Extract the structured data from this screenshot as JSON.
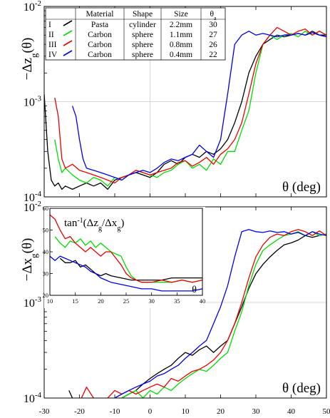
{
  "chart_data": [
    {
      "type": "line",
      "panel": "top",
      "ylabel": "−Δzg(θ)",
      "xlabel": "θ (deg)",
      "xlim": [
        -30,
        50
      ],
      "ylim": [
        0.0001,
        0.01
      ],
      "yscale": "log",
      "ytick_labels": [
        {
          "value": 0.01,
          "base": "10",
          "exp": "-2"
        },
        {
          "value": 0.001,
          "base": "10",
          "exp": "-3"
        },
        {
          "value": 0.0001,
          "base": "10",
          "exp": "-4"
        }
      ],
      "grid": true,
      "legend_table": {
        "headers": [
          "",
          "Material",
          "Shape",
          "Size",
          "θa"
        ],
        "rows": [
          {
            "label": "I",
            "material": "Pasta",
            "shape": "cylinder",
            "size": "2.2mm",
            "theta": "30"
          },
          {
            "label": "II",
            "material": "Carbon",
            "shape": "sphere",
            "size": "1.1mm",
            "theta": "27"
          },
          {
            "label": "III",
            "material": "Carbon",
            "shape": "sphere",
            "size": "0.8mm",
            "theta": "26"
          },
          {
            "label": "IV",
            "material": "Carbon",
            "shape": "sphere",
            "size": "0.4mm",
            "theta": "22"
          }
        ]
      },
      "series": [
        {
          "name": "I",
          "color": "#000000",
          "x": [
            -30,
            -29,
            -28,
            -27,
            -26,
            -25,
            -24,
            -22,
            -20,
            -18,
            -16,
            -14,
            -12,
            -10,
            -8,
            -6,
            -4,
            -2,
            0,
            2,
            4,
            6,
            8,
            10,
            12,
            14,
            16,
            18,
            20,
            22,
            24,
            26,
            28,
            30,
            32,
            34,
            36,
            38,
            40,
            42,
            44,
            46,
            48,
            50
          ],
          "y": [
            0.0012,
            0.0003,
            0.00015,
            0.00013,
            0.00014,
            0.00012,
            0.00013,
            0.00012,
            0.00013,
            0.00014,
            0.00013,
            0.00014,
            0.00012,
            0.00015,
            0.00016,
            0.00017,
            0.00018,
            0.00017,
            0.00016,
            0.00018,
            0.00022,
            0.00024,
            0.00022,
            0.00026,
            0.00028,
            0.00026,
            0.0003,
            0.00028,
            0.00032,
            0.0004,
            0.0006,
            0.001,
            0.002,
            0.003,
            0.004,
            0.0045,
            0.005,
            0.0048,
            0.005,
            0.0052,
            0.005,
            0.0055,
            0.005,
            0.005
          ]
        },
        {
          "name": "II",
          "color": "#00dd00",
          "x": [
            -27,
            -26,
            -25,
            -24,
            -22,
            -20,
            -18,
            -16,
            -14,
            -12,
            -10,
            -8,
            -6,
            -4,
            -2,
            0,
            2,
            4,
            6,
            8,
            10,
            12,
            14,
            16,
            18,
            20,
            22,
            24,
            26,
            28,
            30,
            32,
            34,
            36,
            38,
            40,
            42,
            44,
            46,
            48,
            50
          ],
          "y": [
            0.0004,
            0.00025,
            0.00018,
            0.0002,
            0.00017,
            0.00015,
            0.00014,
            0.00016,
            0.00015,
            0.00013,
            0.00016,
            0.00015,
            0.00017,
            0.00019,
            0.00018,
            0.00017,
            0.00016,
            0.00018,
            0.00019,
            0.00022,
            0.00024,
            0.0002,
            0.00022,
            0.00019,
            0.00025,
            0.00022,
            0.0003,
            0.0003,
            0.0005,
            0.0008,
            0.002,
            0.004,
            0.005,
            0.0045,
            0.005,
            0.0052,
            0.0048,
            0.0055,
            0.005,
            0.0055,
            0.005
          ]
        },
        {
          "name": "III",
          "color": "#ee0000",
          "x": [
            -27,
            -26,
            -25,
            -24,
            -22,
            -20,
            -18,
            -16,
            -14,
            -12,
            -10,
            -8,
            -6,
            -4,
            -2,
            0,
            2,
            4,
            6,
            8,
            10,
            12,
            14,
            16,
            18,
            20,
            22,
            24,
            26,
            28,
            30,
            32,
            34,
            36,
            38,
            40,
            42,
            44,
            46,
            48,
            50
          ],
          "y": [
            0.0011,
            0.0007,
            0.00025,
            0.0002,
            0.00022,
            0.00019,
            0.00018,
            0.00017,
            0.00016,
            0.00015,
            0.00014,
            0.00016,
            0.00017,
            0.00019,
            0.00018,
            0.00017,
            0.00018,
            0.00019,
            0.0002,
            0.00023,
            0.00024,
            0.00021,
            0.00023,
            0.00026,
            0.00022,
            0.00028,
            0.00032,
            0.0004,
            0.0006,
            0.0012,
            0.0025,
            0.004,
            0.005,
            0.006,
            0.0055,
            0.005,
            0.0055,
            0.0058,
            0.005,
            0.0055,
            0.005
          ]
        },
        {
          "name": "IV",
          "color": "#0000ee",
          "x": [
            -22,
            -21,
            -20,
            -19,
            -18,
            -16,
            -14,
            -12,
            -10,
            -8,
            -6,
            -4,
            -2,
            0,
            2,
            4,
            6,
            8,
            10,
            12,
            14,
            16,
            18,
            20,
            22,
            24,
            26,
            28,
            30,
            32,
            34,
            36,
            38,
            40,
            42,
            44,
            46,
            48,
            50
          ],
          "y": [
            0.0009,
            0.0007,
            0.0004,
            0.00025,
            0.0002,
            0.00019,
            0.00018,
            0.00017,
            0.00016,
            0.00015,
            0.00017,
            0.00018,
            0.00019,
            0.00018,
            0.0002,
            0.00023,
            0.00025,
            0.00024,
            0.00026,
            0.00028,
            0.00035,
            0.0003,
            0.00026,
            0.0004,
            0.0012,
            0.004,
            0.005,
            0.0055,
            0.005,
            0.0052,
            0.005,
            0.0048,
            0.005,
            0.005,
            0.0052,
            0.005,
            0.0053,
            0.005,
            0.0048
          ]
        }
      ]
    },
    {
      "type": "line",
      "panel": "bottom",
      "ylabel": "−Δxg(θ)",
      "xlabel": "θ (deg)",
      "xlim": [
        -30,
        50
      ],
      "ylim": [
        0.0001,
        0.01
      ],
      "yscale": "log",
      "ytick_labels": [
        {
          "value": 0.01,
          "base": "10",
          "exp": "-2"
        },
        {
          "value": 0.001,
          "base": "10",
          "exp": "-3"
        },
        {
          "value": 0.0001,
          "base": "10",
          "exp": "-4"
        }
      ],
      "xtick_labels": [
        "-30",
        "-20",
        "-10",
        "0",
        "10",
        "20",
        "30",
        "40",
        "50"
      ],
      "xticks": [
        -30,
        -20,
        -10,
        0,
        10,
        20,
        30,
        40,
        50
      ],
      "grid": true,
      "series": [
        {
          "name": "I",
          "color": "#000000",
          "x": [
            -23,
            -22,
            -20,
            -18,
            -16,
            -14,
            -12,
            -10,
            -8,
            -6,
            -4,
            -2,
            0,
            2,
            4,
            6,
            8,
            10,
            12,
            14,
            16,
            18,
            20,
            22,
            24,
            26,
            28,
            30,
            32,
            34,
            36,
            38,
            40,
            42,
            44,
            46,
            48,
            50
          ],
          "y": [
            0.00012,
            0.0001,
            9e-05,
            9e-05,
            9e-05,
            9e-05,
            9e-05,
            9e-05,
            0.0001,
            0.00011,
            0.00012,
            0.00014,
            0.00016,
            0.00018,
            0.0002,
            0.00022,
            0.00026,
            0.0003,
            0.00028,
            0.00032,
            0.00035,
            0.0003,
            0.00035,
            0.0004,
            0.0006,
            0.0009,
            0.0014,
            0.002,
            0.0025,
            0.003,
            0.0035,
            0.004,
            0.0042,
            0.0045,
            0.005,
            0.0048,
            0.005,
            0.0052
          ]
        },
        {
          "name": "II",
          "color": "#00dd00",
          "x": [
            -10,
            -8,
            -6,
            -4,
            -2,
            0,
            2,
            4,
            6,
            8,
            10,
            12,
            14,
            16,
            18,
            20,
            22,
            24,
            26,
            28,
            30,
            32,
            34,
            36,
            38,
            40,
            42,
            44,
            46,
            48,
            50
          ],
          "y": [
            9e-05,
            0.0001,
            0.00011,
            0.00012,
            0.0001,
            0.00012,
            0.00011,
            0.00013,
            0.00012,
            0.00014,
            0.00016,
            0.00018,
            0.0002,
            0.00019,
            0.00022,
            0.00026,
            0.0003,
            0.0005,
            0.0008,
            0.0015,
            0.0025,
            0.0035,
            0.004,
            0.0045,
            0.005,
            0.0052,
            0.0055,
            0.005,
            0.0055,
            0.005,
            0.0052
          ]
        },
        {
          "name": "III",
          "color": "#ee0000",
          "x": [
            -20,
            -18,
            -16,
            -14,
            -12,
            -10,
            -8,
            -6,
            -4,
            -2,
            0,
            2,
            4,
            6,
            8,
            10,
            12,
            14,
            16,
            18,
            20,
            22,
            24,
            26,
            28,
            30,
            32,
            34,
            36,
            38,
            40,
            42,
            44,
            46,
            48,
            50
          ],
          "y": [
            9e-05,
            0.00013,
            0.0001,
            9e-05,
            0.0001,
            0.00012,
            0.00011,
            0.00012,
            0.00011,
            0.00012,
            0.00013,
            0.00014,
            0.00013,
            0.00016,
            0.00015,
            0.00017,
            0.00019,
            0.0002,
            0.00022,
            0.00025,
            0.0003,
            0.0004,
            0.0006,
            0.001,
            0.0018,
            0.003,
            0.004,
            0.0048,
            0.0052,
            0.005,
            0.0055,
            0.0058,
            0.0055,
            0.005,
            0.0056,
            0.005
          ]
        },
        {
          "name": "IV",
          "color": "#0000ee",
          "x": [
            -12,
            -10,
            -8,
            -6,
            -4,
            -2,
            0,
            2,
            4,
            6,
            8,
            10,
            12,
            14,
            16,
            18,
            20,
            22,
            24,
            26,
            28,
            30,
            32,
            34,
            36,
            38,
            40,
            42,
            44,
            46,
            48,
            50
          ],
          "y": [
            9e-05,
            0.0001,
            0.00011,
            0.00012,
            0.00013,
            0.00014,
            0.00015,
            0.00017,
            0.00018,
            0.0002,
            0.00022,
            0.00026,
            0.0003,
            0.00035,
            0.0004,
            0.0006,
            0.0009,
            0.0015,
            0.003,
            0.0055,
            0.0058,
            0.0055,
            0.0054,
            0.0056,
            0.0054,
            0.0055,
            0.0052,
            0.0054,
            0.005,
            0.0055,
            0.0052,
            0.005
          ]
        }
      ]
    },
    {
      "type": "line",
      "panel": "inset",
      "ylabel": "tan⁻¹(Δzg/Δxg)",
      "xlabel": "θ",
      "xlim": [
        10,
        40
      ],
      "ylim": [
        20,
        60
      ],
      "xticks": [
        10,
        15,
        20,
        25,
        30,
        35,
        40
      ],
      "yticks": [
        20,
        30,
        40,
        50,
        60
      ],
      "series": [
        {
          "name": "I",
          "color": "#000000",
          "x": [
            12,
            13,
            14,
            15,
            16,
            17,
            18,
            19,
            20,
            21,
            22,
            24,
            26,
            28,
            30,
            32,
            34,
            36,
            38,
            40
          ],
          "y": [
            37,
            35,
            35,
            36,
            33,
            34,
            32,
            30,
            29,
            30,
            29,
            28,
            27,
            27,
            27,
            27,
            28,
            28,
            28,
            28
          ]
        },
        {
          "name": "II",
          "color": "#00dd00",
          "x": [
            11,
            12,
            13,
            14,
            15,
            16,
            17,
            18,
            19,
            20,
            21,
            22,
            23,
            24,
            25,
            26,
            27,
            28,
            30,
            32,
            34,
            36,
            38,
            40
          ],
          "y": [
            47,
            44,
            42,
            45,
            44,
            46,
            43,
            45,
            42,
            44,
            42,
            40,
            39,
            38,
            33,
            29,
            27,
            26,
            26,
            26,
            26,
            27,
            26,
            27
          ]
        },
        {
          "name": "III",
          "color": "#ee0000",
          "x": [
            10,
            11,
            12,
            13,
            14,
            15,
            16,
            17,
            18,
            19,
            20,
            21,
            22,
            23,
            24,
            25,
            26,
            27,
            28,
            30,
            32,
            34,
            36,
            38,
            40
          ],
          "y": [
            57,
            55,
            50,
            46,
            47,
            44,
            42,
            40,
            42,
            40,
            38,
            40,
            40,
            37,
            34,
            30,
            28,
            27,
            26,
            26,
            27,
            26,
            27,
            26,
            27
          ]
        },
        {
          "name": "IV",
          "color": "#0000ee",
          "x": [
            10,
            11,
            12,
            13,
            14,
            15,
            16,
            17,
            18,
            19,
            20,
            21,
            22,
            24,
            26,
            28,
            30,
            32,
            34,
            36,
            38,
            40
          ],
          "y": [
            38,
            36,
            38,
            37,
            36,
            35,
            34,
            33,
            31,
            30,
            28,
            27,
            26,
            25,
            24,
            23,
            23,
            22,
            22,
            22,
            22,
            23
          ]
        }
      ]
    }
  ]
}
